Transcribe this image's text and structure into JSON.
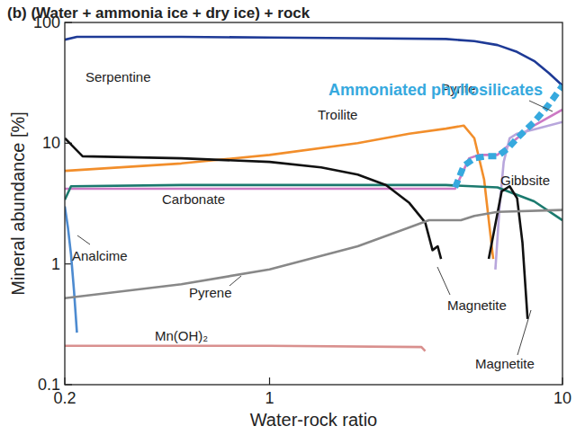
{
  "chart_data": {
    "type": "line",
    "title": "(b) (Water + ammonia ice + dry ice) + rock",
    "x_label": "Water-rock ratio",
    "y_label": "Mineral abundance [%]",
    "log": true,
    "grid": false,
    "xlim": [
      0.2,
      10
    ],
    "ylim": [
      0.1,
      100
    ],
    "xticks": [
      0.2,
      1,
      10
    ],
    "yticks": [
      0.1,
      1,
      10,
      100
    ],
    "series": [
      {
        "name": "Serpentine",
        "color": "#1e3a96",
        "line_style": "solid",
        "x": [
          0.2,
          0.22,
          0.5,
          1,
          2,
          4,
          5,
          6,
          7,
          8,
          9,
          10
        ],
        "values": [
          72,
          76,
          76,
          75,
          74,
          73,
          70,
          65,
          57,
          48,
          38,
          30
        ]
      },
      {
        "name": "Troilite",
        "color": "#f28e2b",
        "line_style": "solid",
        "x": [
          0.2,
          0.5,
          1,
          2,
          3,
          4,
          4.6,
          5,
          5.4,
          5.8
        ],
        "values": [
          5.9,
          6.8,
          8,
          10,
          12,
          13.2,
          14,
          11,
          5,
          1.1
        ]
      },
      {
        "name": "Pyrite",
        "color": "#cc79c4",
        "line_style": "solid",
        "x": [
          0.2,
          1,
          3,
          4.3,
          4.8,
          5.2,
          6,
          7,
          8,
          10
        ],
        "values": [
          4.2,
          4.2,
          4.2,
          4.2,
          7.5,
          8,
          8,
          11,
          14,
          19
        ]
      },
      {
        "name": "Gibbsite",
        "color": "#b8a6dc",
        "line_style": "solid",
        "x": [
          5.9,
          6.1,
          6.3,
          6.6,
          7,
          8,
          10
        ],
        "values": [
          0.9,
          3,
          7,
          11,
          12,
          13,
          15
        ]
      },
      {
        "name": "Carbonate",
        "color": "#1b7a6e",
        "line_style": "solid",
        "x": [
          0.2,
          0.21,
          0.5,
          1,
          2,
          4,
          6,
          8,
          10
        ],
        "values": [
          3.4,
          4.4,
          4.5,
          4.5,
          4.5,
          4.5,
          4.3,
          3.3,
          2.3
        ]
      },
      {
        "name": "Magnetite",
        "color": "#111111",
        "line_style": "solid",
        "x": [
          0.2,
          0.23,
          0.5,
          1,
          1.5,
          2,
          2.5,
          3,
          3.4,
          3.6,
          3.75,
          3.85,
          null,
          5.6,
          6.2,
          6.6,
          7,
          7.3,
          7.6
        ],
        "values": [
          11,
          7.8,
          7.5,
          7,
          6.3,
          5.5,
          4.5,
          3.2,
          2.2,
          1.3,
          1.4,
          1.1,
          null,
          1.1,
          4,
          4.4,
          3.5,
          1.5,
          0.35
        ]
      },
      {
        "name": "Analcime",
        "color": "#4d8bd0",
        "line_style": "solid",
        "x": [
          0.2,
          0.205,
          0.21,
          0.215,
          0.22
        ],
        "values": [
          3,
          2,
          1.2,
          0.6,
          0.27
        ]
      },
      {
        "name": "Pyrene",
        "color": "#888888",
        "line_style": "solid",
        "x": [
          0.2,
          0.5,
          1,
          2,
          3.5,
          4.5,
          5,
          6,
          10
        ],
        "values": [
          0.52,
          0.68,
          0.9,
          1.4,
          2.3,
          2.3,
          2.5,
          2.7,
          2.8
        ]
      },
      {
        "name": "Mn(OH)₂",
        "color": "#d9908e",
        "line_style": "solid",
        "x": [
          0.2,
          1,
          3.3,
          3.4
        ],
        "values": [
          0.21,
          0.21,
          0.205,
          0.19
        ]
      },
      {
        "name": "Ammoniated phyllosilicates",
        "color": "#36a9de",
        "line_style": "dashed",
        "x": [
          4.3,
          4.6,
          5,
          5.5,
          6,
          6.5,
          7,
          8,
          9,
          10
        ],
        "values": [
          4.3,
          6.5,
          7.5,
          7.8,
          7.8,
          9,
          11,
          15,
          21,
          30
        ]
      }
    ]
  }
}
